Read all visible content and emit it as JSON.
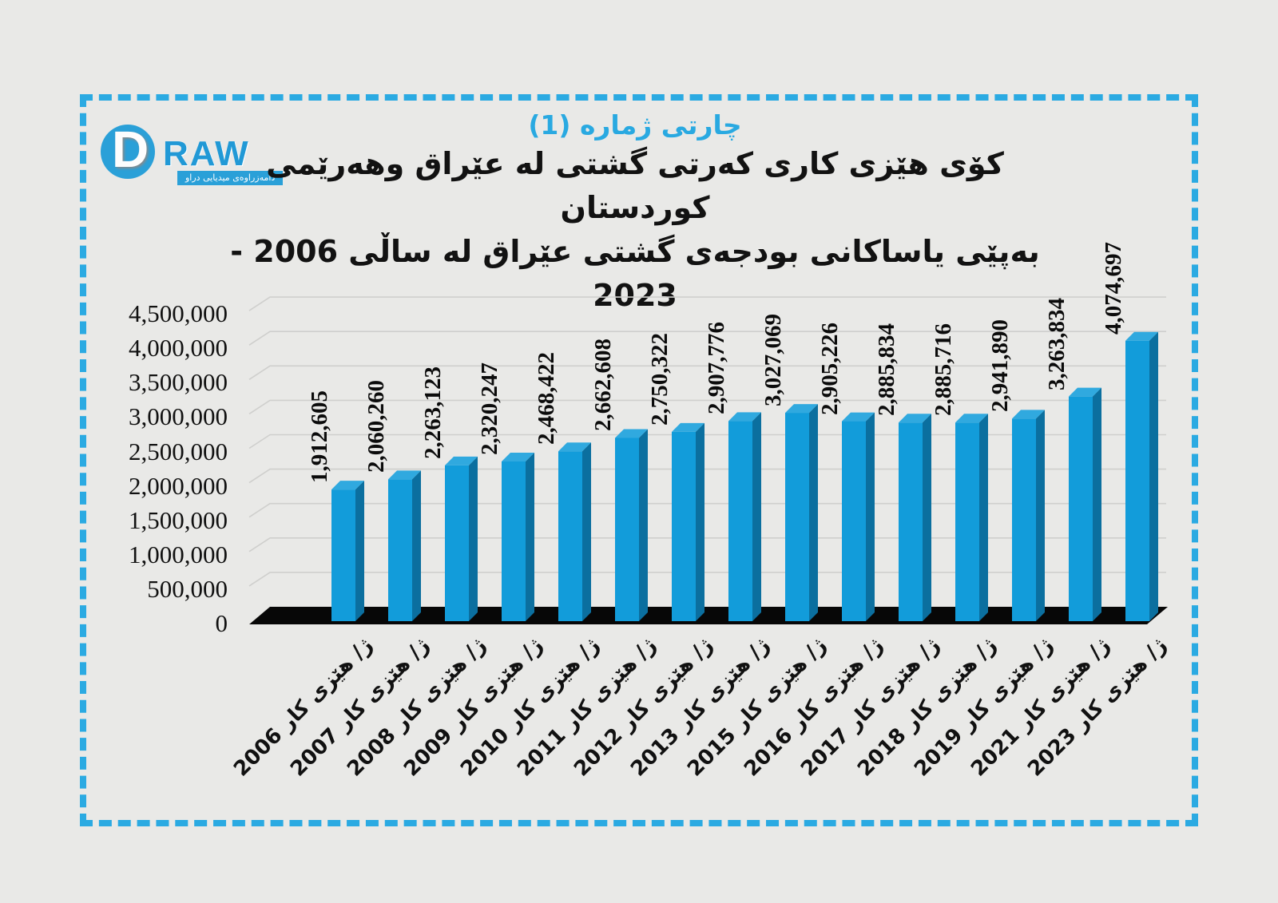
{
  "page": {
    "background": "#e9e9e7",
    "frame_color": "#2baae2"
  },
  "logo": {
    "d": "D",
    "raw": "RAW",
    "banner": "دامەزراوەی میدیایی دراو"
  },
  "title": {
    "line1": "چارتی ژماره (1)",
    "line2": "كۆی هێزی كاری كەرتی گشتی له عێراق وهەرێمی كوردستان",
    "line3": "بەپێی یاساكانی بودجەی گشتی عێراق له ساڵی 2006 - 2023",
    "accent_color": "#29a9e1"
  },
  "chart_data": {
    "type": "bar",
    "style": "3d-column",
    "title": "كۆی هێزی كاری كەرتی گشتی له عێراق وهەرێمی كوردستان بەپێی یاساكانی بودجەی گشتی عێراق له ساڵی 2006 - 2023",
    "x_label_prefix": "ژ/ هێزی کار",
    "years": [
      "2006",
      "2007",
      "2008",
      "2009",
      "2010",
      "2011",
      "2012",
      "2013",
      "2015",
      "2016",
      "2017",
      "2018",
      "2019",
      "2021",
      "2023"
    ],
    "categories": [
      "ژ/ هێزی کار 2006",
      "ژ/ هێزی کار 2007",
      "ژ/ هێزی کار 2008",
      "ژ/ هێزی کار 2009",
      "ژ/ هێزی کار 2010",
      "ژ/ هێزی کار 2011",
      "ژ/ هێزی کار 2012",
      "ژ/ هێزی کار 2013",
      "ژ/ هێزی کار 2015",
      "ژ/ هێزی کار 2016",
      "ژ/ هێزی کار 2017",
      "ژ/ هێزی کار 2018",
      "ژ/ هێزی کار 2019",
      "ژ/ هێزی کار 2021",
      "ژ/ هێزی کار 2023"
    ],
    "values": [
      1912605,
      2060260,
      2263123,
      2320247,
      2468422,
      2662608,
      2750322,
      2907776,
      3027069,
      2905226,
      2885834,
      2885716,
      2941890,
      3263834,
      4074697
    ],
    "value_labels": [
      "1,912,605",
      "2,060,260",
      "2,263,123",
      "2,320,247",
      "2,468,422",
      "2,662,608",
      "2,750,322",
      "2,907,776",
      "3,027,069",
      "2,905,226",
      "2,885,834",
      "2,885,716",
      "2,941,890",
      "3,263,834",
      "4,074,697"
    ],
    "y_ticks": [
      "0",
      "500,000",
      "1,000,000",
      "1,500,000",
      "2,000,000",
      "2,500,000",
      "3,000,000",
      "3,500,000",
      "4,000,000",
      "4,500,000"
    ],
    "ylim": [
      0,
      4500000
    ],
    "y_step": 500000,
    "grid": true,
    "legend": false,
    "colors": {
      "bar_front": "#129cda",
      "bar_side": "#0b6f9f",
      "bar_top": "#30a9df",
      "floor": "#070707",
      "gridline": "#cfcfcd",
      "text": "#111111"
    }
  }
}
